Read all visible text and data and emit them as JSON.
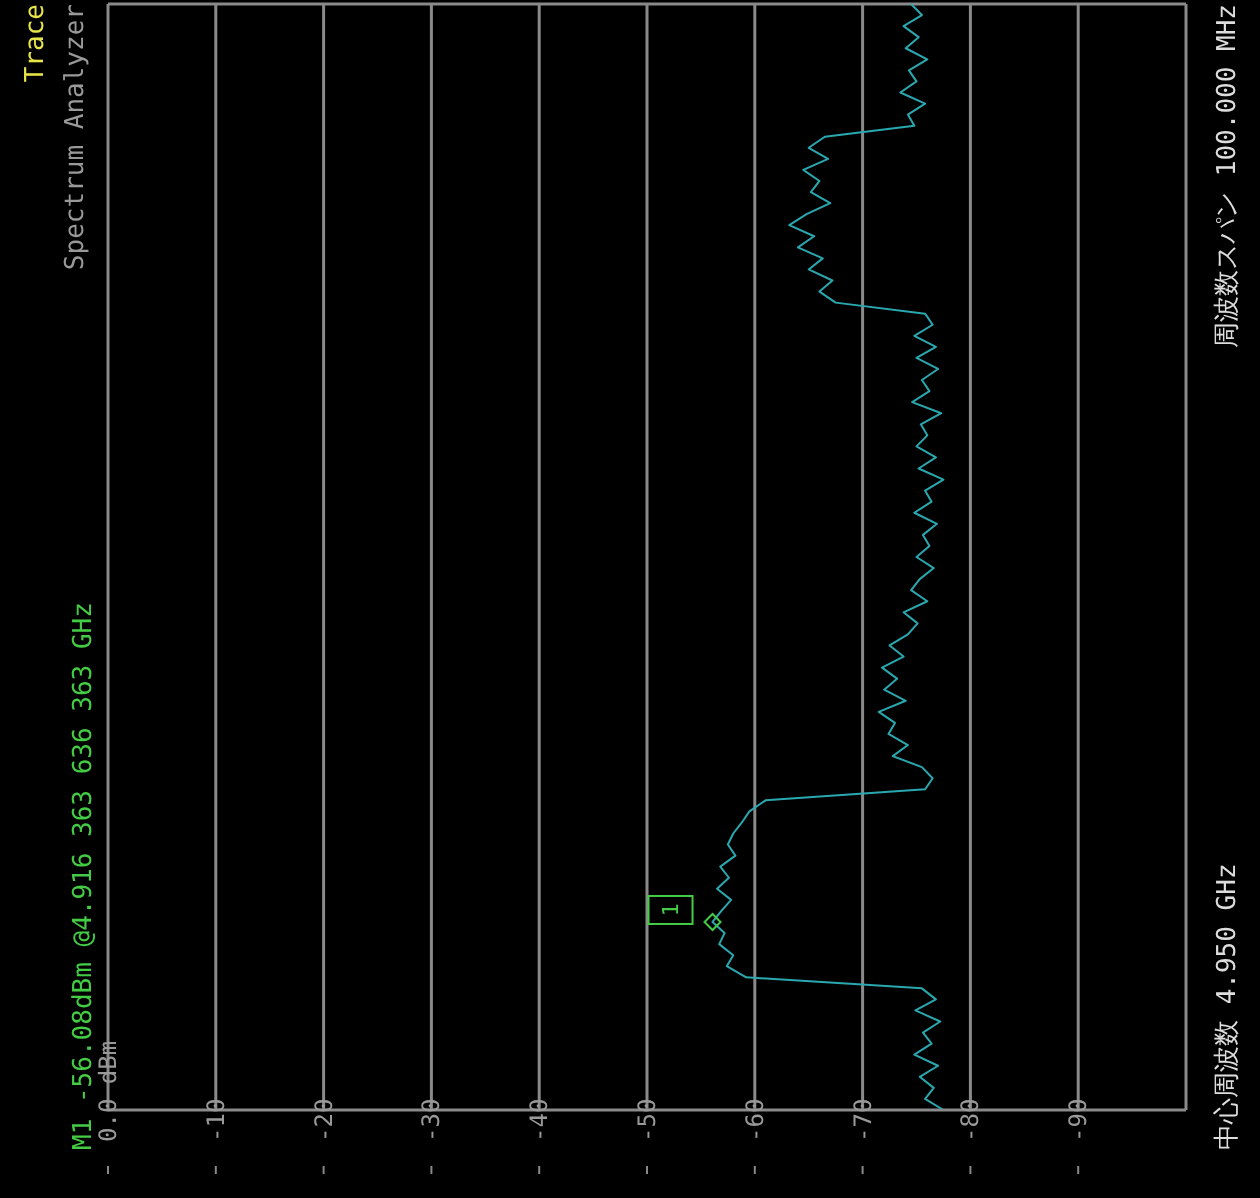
{
  "chart_data": {
    "type": "line",
    "orientation": "horizontal",
    "categories": [
      null,
      null,
      null,
      null,
      null,
      null,
      null,
      null,
      null,
      null,
      null,
      null,
      null,
      null,
      null,
      null,
      null,
      null,
      null,
      null,
      null,
      null,
      null,
      null,
      null,
      null,
      null,
      null,
      null,
      null,
      null,
      null,
      null,
      null,
      null,
      null,
      null,
      null,
      null,
      null,
      null,
      null,
      null,
      null,
      null,
      null,
      null,
      null,
      null,
      null,
      null,
      null,
      null,
      null,
      null,
      null,
      null,
      null,
      null,
      null,
      null,
      null,
      null,
      null,
      null,
      null,
      null,
      null,
      null,
      null,
      null,
      null,
      null,
      null,
      null,
      null,
      null,
      null,
      null,
      null,
      null,
      null,
      null,
      null,
      null,
      null,
      null,
      null,
      null,
      null,
      null,
      null,
      null,
      null,
      null,
      null,
      null,
      null,
      null,
      null,
      null
    ],
    "series": [
      {
        "color": "#2aa8b0",
        "values": [
          -74.5,
          -75.5,
          -73.8,
          -75.2,
          -74.0,
          -76.0,
          -74.3,
          -75.0,
          -73.5,
          -75.8,
          -74.2,
          -74.8,
          -66.5,
          -65.0,
          -66.8,
          -64.5,
          -66.0,
          -65.2,
          -67.0,
          -64.8,
          -63.2,
          -65.5,
          -64.0,
          -66.3,
          -65.0,
          -67.2,
          -66.0,
          -67.5,
          -75.8,
          -76.5,
          -74.8,
          -76.8,
          -75.0,
          -77.0,
          -75.5,
          -76.2,
          -74.6,
          -77.3,
          -75.4,
          -76.0,
          -75.0,
          -76.8,
          -75.2,
          -77.5,
          -75.8,
          -76.4,
          -74.8,
          -76.9,
          -75.6,
          -76.2,
          -75.0,
          -76.6,
          -75.3,
          -74.5,
          -76.0,
          -73.8,
          -75.1,
          -74.2,
          -72.5,
          -73.8,
          -71.8,
          -73.2,
          -72.0,
          -74.0,
          -71.5,
          -73.0,
          -72.4,
          -74.2,
          -72.8,
          -75.5,
          -76.5,
          -75.8,
          -61.0,
          -59.5,
          -58.8,
          -58.0,
          -57.5,
          -58.2,
          -56.8,
          -57.6,
          -56.5,
          -57.8,
          -56.9,
          -56.08,
          -57.2,
          -56.7,
          -58.0,
          -57.4,
          -59.2,
          -75.5,
          -76.8,
          -74.9,
          -77.2,
          -75.6,
          -76.4,
          -74.8,
          -77.0,
          -75.3,
          -76.6,
          -75.8,
          -77.5
        ]
      }
    ],
    "xlim": [
      0,
      -100
    ],
    "xticks": [
      {
        "value": 0,
        "label": "0.0 dBm"
      },
      -10,
      -20,
      -30,
      -40,
      -50,
      -60,
      -70,
      -80,
      -90
    ],
    "grid": true,
    "annotations": [
      "Trace",
      "Spectrum Analyzer",
      "M1 -56.08dBm @4.916 363 636 363 GHz",
      {
        "text": "1",
        "x": -56.08
      },
      "中心周波数 4.950 GHz",
      "周波数スパン 100.000 MHz"
    ]
  }
}
